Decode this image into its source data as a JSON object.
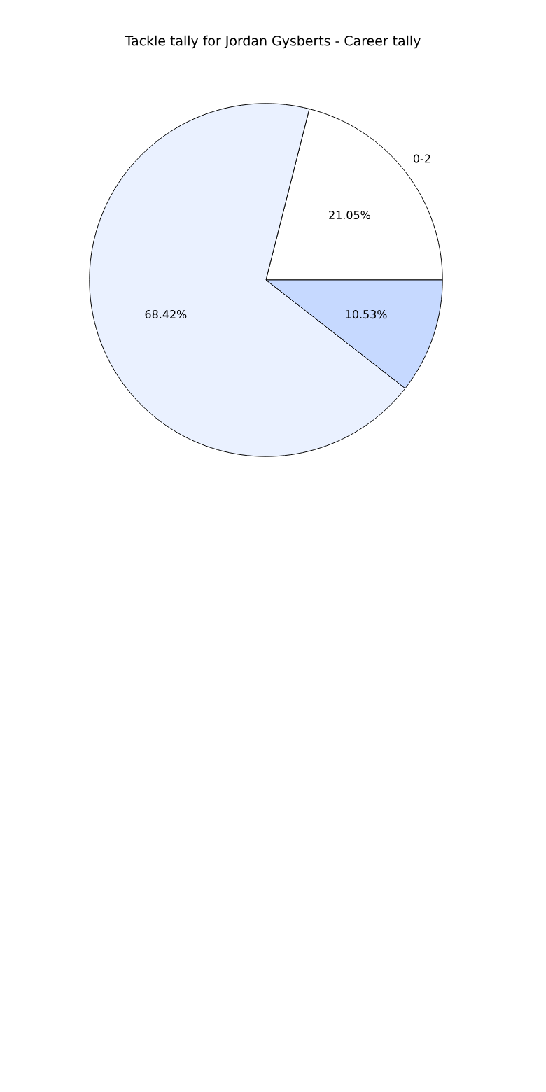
{
  "chart_data": {
    "type": "pie",
    "title": "Tackle tally for Jordan Gysberts - Career tally",
    "categories": [
      "0-2",
      null,
      null
    ],
    "values": [
      21.05,
      68.42,
      10.53
    ],
    "value_labels": [
      "21.05%",
      "68.42%",
      "10.53%"
    ],
    "colors": [
      "#ffffff",
      "#eaf1ff",
      "#c6d9ff"
    ]
  }
}
